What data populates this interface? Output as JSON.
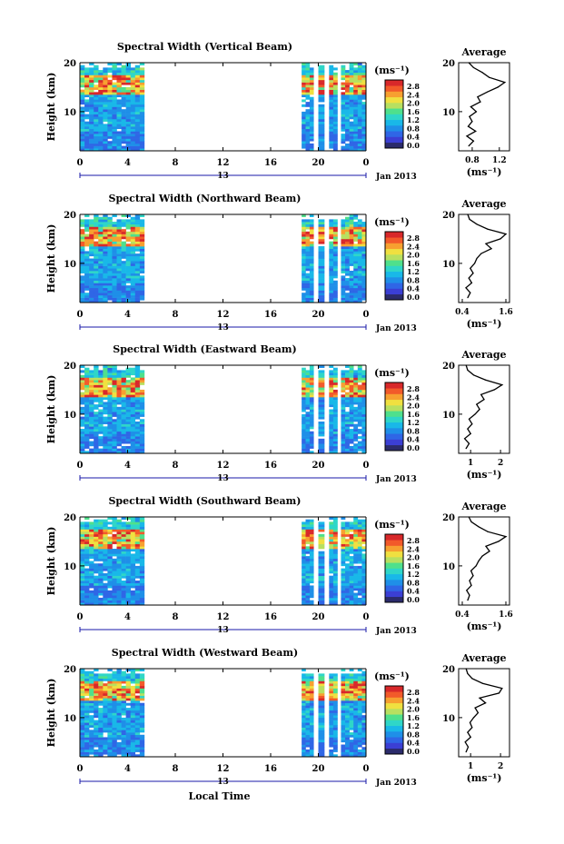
{
  "chart_data": [
    {
      "type": "heatmap",
      "title": "Spectral Width (Vertical Beam)",
      "ylabel": "Height (km)",
      "xlim": [
        0,
        24
      ],
      "ylim": [
        2,
        20
      ],
      "x_ticks": [
        "0",
        "4",
        "8",
        "12",
        "16",
        "20",
        "0"
      ],
      "y_ticks": [
        "20",
        "10"
      ],
      "date_label": "Jan 2013",
      "day_label": "13",
      "colorbar": {
        "unit": "(ms⁻¹)",
        "ticks": [
          "2.8",
          "2.4",
          "2.0",
          "1.6",
          "1.2",
          "0.8",
          "0.4",
          "0.0"
        ]
      },
      "data_segments_hours": [
        [
          0,
          5.4
        ],
        [
          18.6,
          19.6
        ],
        [
          20.0,
          20.5
        ],
        [
          20.9,
          21.6
        ],
        [
          21.9,
          24.0
        ]
      ],
      "average": {
        "title": "Average",
        "xlabel": "(ms⁻¹)",
        "x_ticks": [
          "0.8",
          "1.2"
        ],
        "y_ticks": [
          "20",
          "10"
        ],
        "xlim": [
          0.6,
          1.35
        ],
        "height_km": [
          3,
          4,
          5,
          6,
          7,
          8,
          9,
          10,
          11,
          12,
          13,
          14,
          15,
          16,
          17,
          18,
          19,
          20
        ],
        "width_ms": [
          0.75,
          0.82,
          0.72,
          0.85,
          0.74,
          0.8,
          0.76,
          0.86,
          0.78,
          0.92,
          0.88,
          1.02,
          1.18,
          1.28,
          1.05,
          0.95,
          0.82,
          0.75
        ]
      }
    },
    {
      "type": "heatmap",
      "title": "Spectral Width (Northward Beam)",
      "ylabel": "Height (km)",
      "xlim": [
        0,
        24
      ],
      "ylim": [
        2,
        20
      ],
      "x_ticks": [
        "0",
        "4",
        "8",
        "12",
        "16",
        "20",
        "0"
      ],
      "y_ticks": [
        "20",
        "10"
      ],
      "date_label": "Jan 2013",
      "day_label": "13",
      "colorbar": {
        "unit": "(ms⁻¹)",
        "ticks": [
          "2.8",
          "2.4",
          "2.0",
          "1.6",
          "1.2",
          "0.8",
          "0.4",
          "0.0"
        ]
      },
      "data_segments_hours": [
        [
          0,
          5.4
        ],
        [
          18.6,
          19.6
        ],
        [
          20.0,
          20.5
        ],
        [
          20.9,
          21.6
        ],
        [
          21.9,
          24.0
        ]
      ],
      "average": {
        "title": "Average",
        "xlabel": "(ms⁻¹)",
        "x_ticks": [
          "0.4",
          "1.6"
        ],
        "y_ticks": [
          "20",
          "10"
        ],
        "xlim": [
          0.3,
          1.7
        ],
        "height_km": [
          3,
          4,
          5,
          6,
          7,
          8,
          9,
          10,
          11,
          12,
          13,
          14,
          15,
          16,
          17,
          18,
          19,
          20
        ],
        "width_ms": [
          0.55,
          0.62,
          0.5,
          0.66,
          0.58,
          0.7,
          0.62,
          0.74,
          0.8,
          0.92,
          1.2,
          1.05,
          1.45,
          1.6,
          1.1,
          0.8,
          0.6,
          0.55
        ]
      }
    },
    {
      "type": "heatmap",
      "title": "Spectral Width (Eastward Beam)",
      "ylabel": "Height (km)",
      "xlim": [
        0,
        24
      ],
      "ylim": [
        2,
        20
      ],
      "x_ticks": [
        "0",
        "4",
        "8",
        "12",
        "16",
        "20",
        "0"
      ],
      "y_ticks": [
        "20",
        "10"
      ],
      "date_label": "Jan 2013",
      "day_label": "13",
      "colorbar": {
        "unit": "(ms⁻¹)",
        "ticks": [
          "2.8",
          "2.4",
          "2.0",
          "1.6",
          "1.2",
          "0.8",
          "0.4",
          "0.0"
        ]
      },
      "data_segments_hours": [
        [
          0,
          5.4
        ],
        [
          18.6,
          19.6
        ],
        [
          20.0,
          20.5
        ],
        [
          20.9,
          21.6
        ],
        [
          21.9,
          24.0
        ]
      ],
      "average": {
        "title": "Average",
        "xlabel": "(ms⁻¹)",
        "x_ticks": [
          "1",
          "2"
        ],
        "y_ticks": [
          "20",
          "10"
        ],
        "xlim": [
          0.6,
          2.3
        ],
        "height_km": [
          3,
          4,
          5,
          6,
          7,
          8,
          9,
          10,
          11,
          12,
          13,
          14,
          15,
          16,
          17,
          18,
          19,
          20
        ],
        "width_ms": [
          0.85,
          0.95,
          0.8,
          1.0,
          0.9,
          1.05,
          0.95,
          1.15,
          1.3,
          1.2,
          1.45,
          1.35,
          1.8,
          2.05,
          1.5,
          1.1,
          0.9,
          0.85
        ]
      }
    },
    {
      "type": "heatmap",
      "title": "Spectral Width (Southward Beam)",
      "ylabel": "Height (km)",
      "xlim": [
        0,
        24
      ],
      "ylim": [
        2,
        20
      ],
      "x_ticks": [
        "0",
        "4",
        "8",
        "12",
        "16",
        "20",
        "0"
      ],
      "y_ticks": [
        "20",
        "10"
      ],
      "date_label": "Jan 2013",
      "day_label": "13",
      "colorbar": {
        "unit": "(ms⁻¹)",
        "ticks": [
          "2.8",
          "2.4",
          "2.0",
          "1.6",
          "1.2",
          "0.8",
          "0.4",
          "0.0"
        ]
      },
      "data_segments_hours": [
        [
          0,
          5.4
        ],
        [
          18.6,
          19.6
        ],
        [
          20.0,
          20.5
        ],
        [
          20.9,
          21.6
        ],
        [
          21.9,
          24.0
        ]
      ],
      "average": {
        "title": "Average",
        "xlabel": "(ms⁻¹)",
        "x_ticks": [
          "0.4",
          "1.6"
        ],
        "y_ticks": [
          "20",
          "10"
        ],
        "xlim": [
          0.3,
          1.7
        ],
        "height_km": [
          3,
          4,
          5,
          6,
          7,
          8,
          9,
          10,
          11,
          12,
          13,
          14,
          15,
          16,
          17,
          18,
          19,
          20
        ],
        "width_ms": [
          0.55,
          0.6,
          0.52,
          0.65,
          0.6,
          0.7,
          0.64,
          0.78,
          0.85,
          0.95,
          1.15,
          1.05,
          1.4,
          1.6,
          1.1,
          0.85,
          0.65,
          0.58
        ]
      }
    },
    {
      "type": "heatmap",
      "title": "Spectral Width (Westward Beam)",
      "ylabel": "Height (km)",
      "xlim": [
        0,
        24
      ],
      "ylim": [
        2,
        20
      ],
      "x_ticks": [
        "0",
        "4",
        "8",
        "12",
        "16",
        "20",
        "0"
      ],
      "y_ticks": [
        "20",
        "10"
      ],
      "date_label": "Jan 2013",
      "day_label": "13",
      "xlabel": "Local Time",
      "colorbar": {
        "unit": "(ms⁻¹)",
        "ticks": [
          "2.8",
          "2.4",
          "2.0",
          "1.6",
          "1.2",
          "0.8",
          "0.4",
          "0.0"
        ]
      },
      "data_segments_hours": [
        [
          0,
          5.4
        ],
        [
          18.6,
          19.6
        ],
        [
          20.0,
          20.5
        ],
        [
          20.9,
          21.6
        ],
        [
          21.9,
          24.0
        ]
      ],
      "average": {
        "title": "Average",
        "xlabel": "(ms⁻¹)",
        "x_ticks": [
          "1",
          "2"
        ],
        "y_ticks": [
          "20",
          "10"
        ],
        "xlim": [
          0.6,
          2.3
        ],
        "height_km": [
          3,
          4,
          5,
          6,
          7,
          8,
          9,
          10,
          11,
          12,
          13,
          14,
          15,
          16,
          17,
          18,
          19,
          20
        ],
        "width_ms": [
          0.85,
          0.92,
          0.82,
          1.0,
          0.9,
          1.05,
          0.98,
          1.1,
          1.25,
          1.15,
          1.5,
          1.3,
          1.95,
          2.05,
          1.4,
          1.05,
          0.9,
          0.85
        ]
      }
    }
  ]
}
